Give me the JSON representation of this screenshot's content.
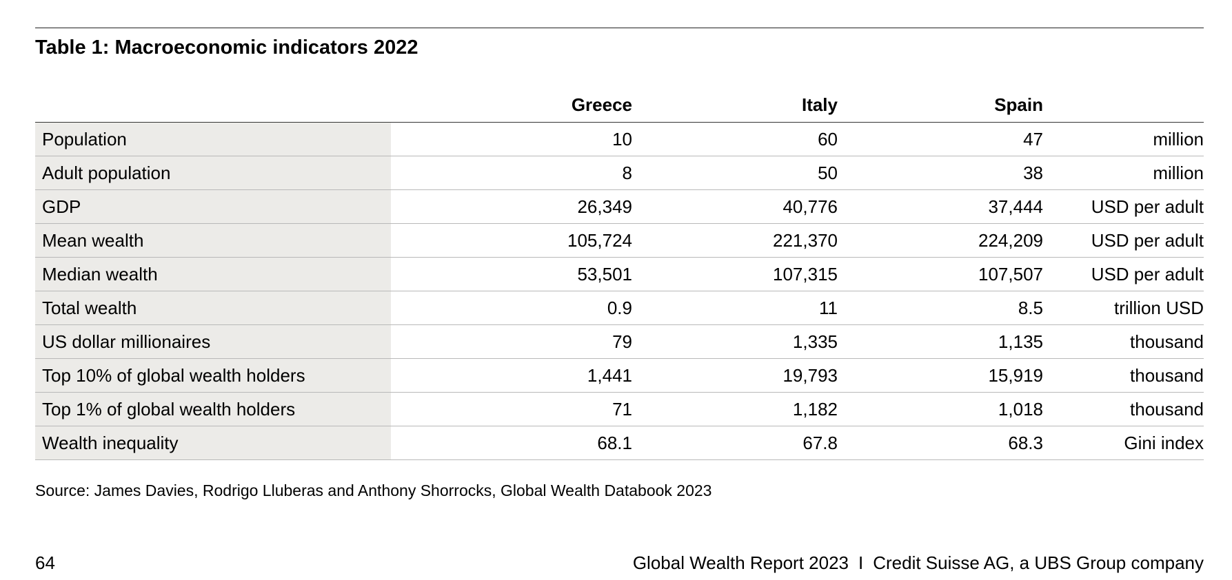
{
  "title": "Table 1: Macroeconomic indicators 2022",
  "table": {
    "columns": [
      "",
      "Greece",
      "Italy",
      "Spain",
      ""
    ],
    "rows": [
      {
        "label": "Population",
        "greece": "10",
        "italy": "60",
        "spain": "47",
        "unit": "million"
      },
      {
        "label": "Adult population",
        "greece": "8",
        "italy": "50",
        "spain": "38",
        "unit": "million"
      },
      {
        "label": "GDP",
        "greece": "26,349",
        "italy": "40,776",
        "spain": "37,444",
        "unit": "USD per adult"
      },
      {
        "label": "Mean wealth",
        "greece": "105,724",
        "italy": "221,370",
        "spain": "224,209",
        "unit": "USD per adult"
      },
      {
        "label": "Median wealth",
        "greece": "53,501",
        "italy": "107,315",
        "spain": "107,507",
        "unit": "USD per adult"
      },
      {
        "label": "Total wealth",
        "greece": "0.9",
        "italy": "11",
        "spain": "8.5",
        "unit": "trillion USD"
      },
      {
        "label": "US dollar millionaires",
        "greece": "79",
        "italy": "1,335",
        "spain": "1,135",
        "unit": "thousand"
      },
      {
        "label": "Top 10% of global wealth holders",
        "greece": "1,441",
        "italy": "19,793",
        "spain": "15,919",
        "unit": "thousand"
      },
      {
        "label": "Top 1% of global wealth holders",
        "greece": "71",
        "italy": "1,182",
        "spain": "1,018",
        "unit": "thousand"
      },
      {
        "label": "Wealth inequality",
        "greece": "68.1",
        "italy": "67.8",
        "spain": "68.3",
        "unit": "Gini index"
      }
    ]
  },
  "source": "Source: James Davies, Rodrigo Lluberas and Anthony Shorrocks, Global Wealth Databook 2023",
  "footer": {
    "page_number": "64",
    "report": "Global Wealth Report 2023",
    "separator": "I",
    "publisher": "Credit Suisse AG, a UBS Group company"
  },
  "colors": {
    "label_column_background": "#ecebe8",
    "row_divider": "#b8b8b8",
    "rule": "#222222"
  }
}
